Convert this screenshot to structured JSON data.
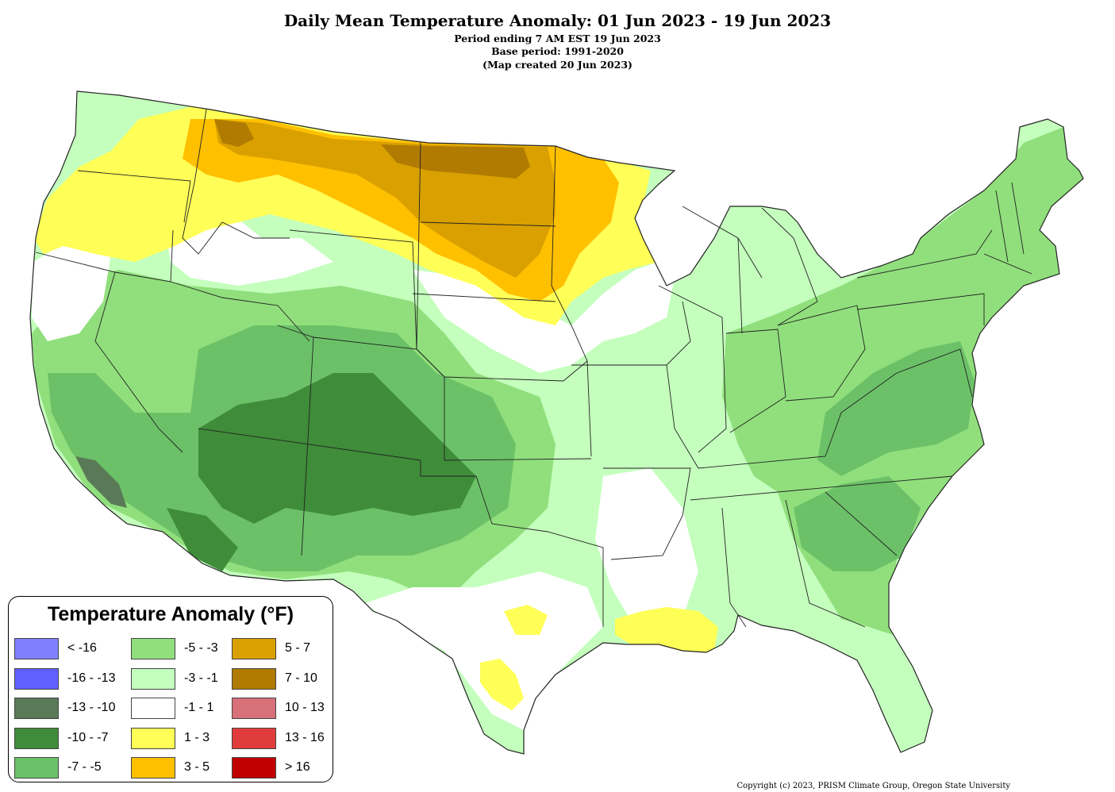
{
  "header": {
    "title": "Daily Mean Temperature Anomaly: 01 Jun 2023 - 19 Jun 2023",
    "subtitle_1": "Period ending 7 AM EST 19 Jun 2023",
    "subtitle_2": "Base period: 1991-2020",
    "subtitle_3": "(Map created 20 Jun 2023)"
  },
  "legend": {
    "title": "Temperature Anomaly (°F)",
    "items": [
      {
        "label": "< -16",
        "color": "#8080ff"
      },
      {
        "label": "-16 - -13",
        "color": "#6060ff"
      },
      {
        "label": "-13 - -10",
        "color": "#5a7a57"
      },
      {
        "label": "-10 - -7",
        "color": "#3f8c3a"
      },
      {
        "label": "-7 - -5",
        "color": "#6cc168"
      },
      {
        "label": "-5 - -3",
        "color": "#90df7c"
      },
      {
        "label": "-3 - -1",
        "color": "#c4ffbd"
      },
      {
        "label": "-1 - 1",
        "color": "#ffffff"
      },
      {
        "label": "1 - 3",
        "color": "#ffff57"
      },
      {
        "label": "3 - 5",
        "color": "#ffc000"
      },
      {
        "label": "5 - 7",
        "color": "#d9a000"
      },
      {
        "label": "7 - 10",
        "color": "#b07b00"
      },
      {
        "label": "10 - 13",
        "color": "#d8707a"
      },
      {
        "label": "13 - 16",
        "color": "#e03c3c"
      },
      {
        "label": "> 16",
        "color": "#c00000"
      }
    ]
  },
  "footer": {
    "copyright": "Copyright (c) 2023, PRISM Climate Group, Oregon State University"
  }
}
